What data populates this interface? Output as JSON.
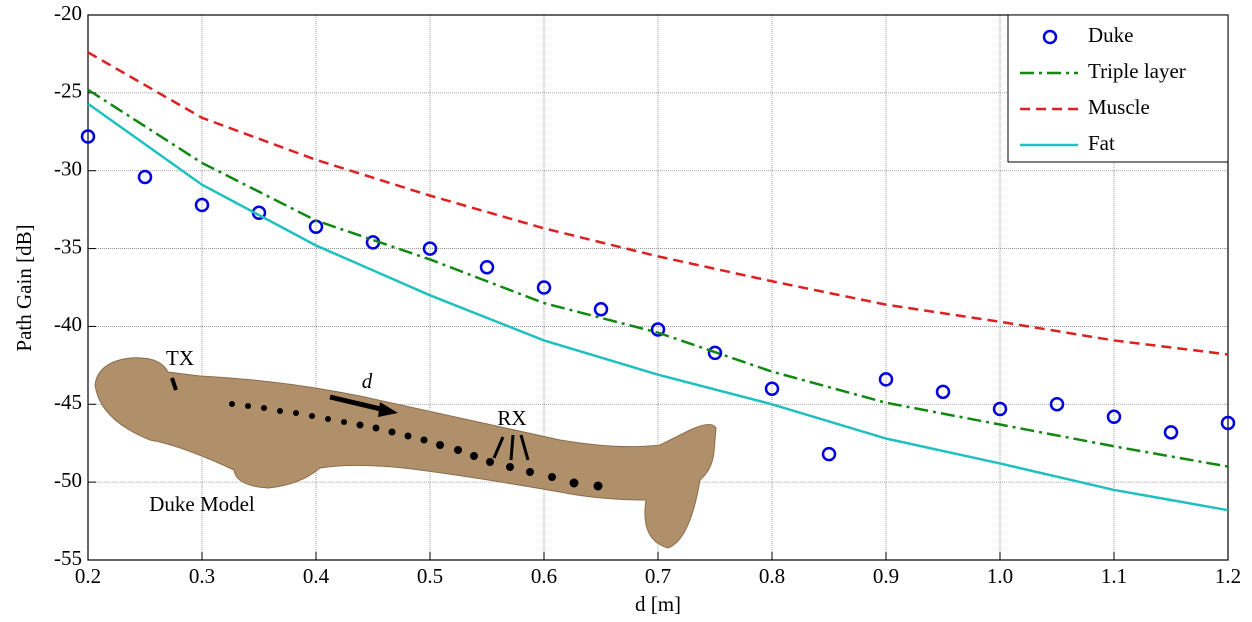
{
  "chart_data": {
    "type": "line",
    "xlabel": "d [m]",
    "ylabel": "Path Gain [dB]",
    "xlim": [
      0.2,
      1.2
    ],
    "ylim": [
      -55,
      -20
    ],
    "xticks": [
      0.2,
      0.3,
      0.4,
      0.5,
      0.6,
      0.7,
      0.8,
      0.9,
      {
        "value": 1,
        "label": "1.0"
      },
      1.1,
      1.2
    ],
    "yticks": [
      -20,
      -25,
      -30,
      -35,
      -40,
      -45,
      -50,
      -55
    ],
    "grid": true,
    "legend": "top-right",
    "series": [
      {
        "name": "Duke",
        "color": "#0000e0",
        "style": "markers",
        "x": [
          0.2,
          0.25,
          0.3,
          0.35,
          0.4,
          0.45,
          0.5,
          0.55,
          0.6,
          0.65,
          0.7,
          0.75,
          0.8,
          0.85,
          0.9,
          0.95,
          1,
          1.05,
          1.1,
          1.15,
          1.2
        ],
        "values": [
          -27.8,
          -30.4,
          -32.2,
          -32.7,
          -33.6,
          -34.6,
          -35.0,
          -36.2,
          -37.5,
          -38.9,
          -40.2,
          -41.7,
          -44.0,
          -48.2,
          -43.4,
          -44.2,
          -45.3,
          -45.0,
          -45.8,
          -46.8,
          -46.2
        ]
      },
      {
        "name": "Triple layer",
        "color": "#118811",
        "style": "dashdot",
        "x": [
          0.2,
          0.3,
          0.4,
          0.5,
          0.6,
          0.7,
          0.8,
          0.9,
          1,
          1.1,
          1.2
        ],
        "values": [
          -24.8,
          -29.5,
          -33.2,
          -35.7,
          -38.5,
          -40.4,
          -42.9,
          -44.9,
          -46.3,
          -47.7,
          -49.0
        ]
      },
      {
        "name": "Muscle",
        "color": "#e02020",
        "style": "dashed",
        "x": [
          0.2,
          0.3,
          0.4,
          0.5,
          0.6,
          0.7,
          0.8,
          0.9,
          1,
          1.1,
          1.2
        ],
        "values": [
          -22.4,
          -26.6,
          -29.3,
          -31.6,
          -33.7,
          -35.5,
          -37.1,
          -38.6,
          -39.7,
          -40.9,
          -41.8
        ]
      },
      {
        "name": "Fat",
        "color": "#20c0c0",
        "style": "solid",
        "x": [
          0.2,
          0.3,
          0.4,
          0.5,
          0.6,
          0.7,
          0.8,
          0.9,
          1,
          1.1,
          1.2
        ],
        "values": [
          -25.7,
          -30.9,
          -34.8,
          -38.0,
          -40.9,
          -43.1,
          -45.0,
          -47.2,
          -48.8,
          -50.5,
          -51.8
        ]
      }
    ],
    "annotations": [
      "TX",
      "d",
      "RX",
      "Duke Model"
    ]
  }
}
